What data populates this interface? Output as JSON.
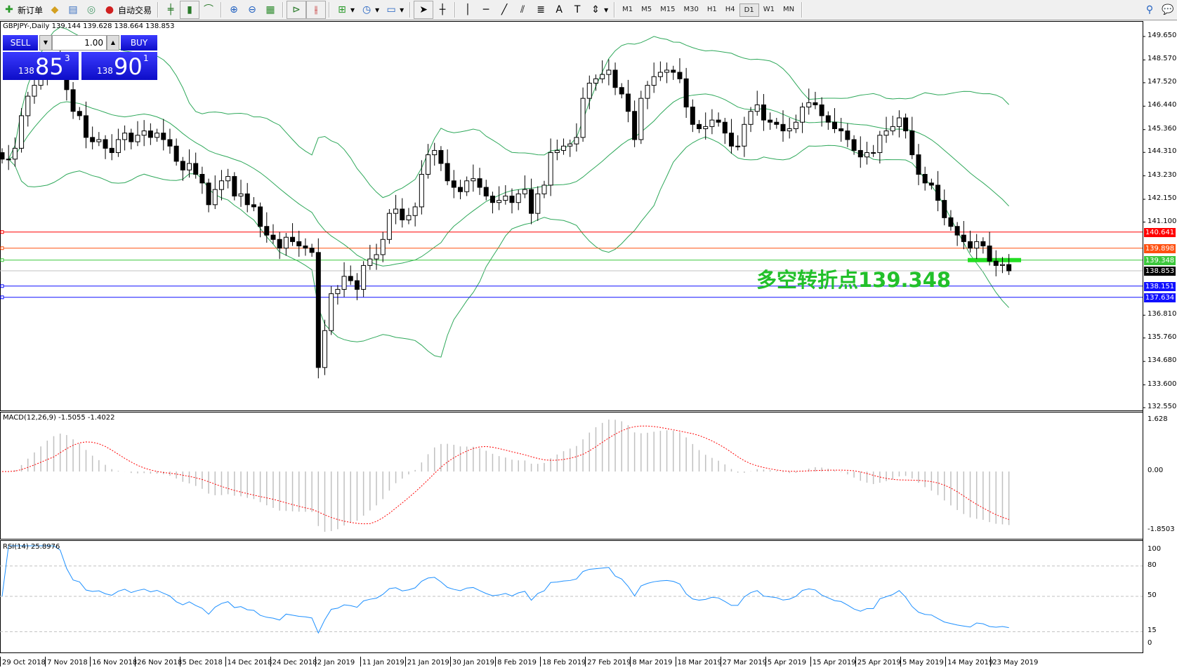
{
  "toolbar": {
    "new_order": "新订单",
    "auto_trading": "自动交易",
    "timeframes": [
      "M1",
      "M5",
      "M15",
      "M30",
      "H1",
      "H4",
      "D1",
      "W1",
      "MN"
    ],
    "active_timeframe": "D1"
  },
  "chart": {
    "header": "GBPJPY-,Daily  139.144 139.628 138.664 138.853",
    "symbol": "GBPJPY-",
    "period": "Daily",
    "ohlc_last": {
      "open": 139.144,
      "high": 139.628,
      "low": 138.664,
      "close": 138.853
    },
    "one_click": {
      "sell_label": "SELL",
      "buy_label": "BUY",
      "lot": "1.00",
      "sell_big": "138",
      "sell_main": "85",
      "sell_sup": "3",
      "buy_big": "138",
      "buy_main": "90",
      "buy_sup": "1"
    },
    "annotation": "多空转折点139.348",
    "price_ticks": [
      "149.650",
      "148.570",
      "147.520",
      "146.440",
      "145.360",
      "144.310",
      "143.230",
      "142.150",
      "141.100",
      "136.810",
      "135.760",
      "134.680",
      "133.600",
      "132.550"
    ],
    "levels": [
      {
        "price": 140.641,
        "label": "140.641",
        "color": "#ff0000"
      },
      {
        "price": 139.898,
        "label": "139.898",
        "color": "#ff5010"
      },
      {
        "price": 139.348,
        "label": "139.348",
        "color": "#3cc83c"
      },
      {
        "price": 138.853,
        "label": "138.853",
        "color": "#000000",
        "line": "#c0c0c0"
      },
      {
        "price": 138.151,
        "label": "138.151",
        "color": "#1010ff"
      },
      {
        "price": 137.634,
        "label": "137.634",
        "color": "#1010ff"
      }
    ],
    "closes": [
      144.0,
      144.0,
      144.5,
      146.0,
      146.9,
      147.4,
      147.9,
      148.4,
      148.5,
      148.3,
      147.2,
      146.2,
      146.0,
      145.0,
      144.8,
      144.9,
      144.5,
      144.3,
      144.9,
      145.2,
      144.8,
      145.1,
      145.3,
      145.0,
      145.2,
      144.9,
      144.6,
      143.9,
      143.5,
      143.8,
      143.3,
      142.9,
      141.9,
      142.6,
      143.0,
      143.2,
      142.3,
      142.4,
      141.9,
      141.8,
      140.9,
      140.5,
      140.3,
      139.9,
      140.4,
      140.2,
      140.0,
      139.9,
      139.7,
      134.4,
      136.1,
      137.8,
      138.0,
      138.6,
      138.4,
      138.0,
      139.1,
      139.4,
      139.6,
      140.3,
      141.5,
      141.7,
      141.2,
      141.4,
      141.8,
      143.3,
      144.2,
      144.4,
      143.8,
      143.0,
      142.7,
      142.5,
      143.0,
      143.1,
      142.7,
      142.3,
      142.0,
      142.1,
      142.3,
      142.0,
      142.4,
      142.6,
      141.5,
      142.4,
      142.8,
      144.3,
      144.4,
      144.6,
      144.7,
      145.0,
      146.8,
      147.5,
      147.7,
      147.9,
      148.1,
      147.3,
      147.0,
      146.2,
      144.9,
      146.8,
      147.4,
      147.8,
      148.0,
      148.1,
      148.0,
      147.7,
      146.4,
      145.6,
      145.4,
      145.5,
      145.8,
      145.7,
      145.2,
      144.6,
      144.6,
      145.6,
      146.2,
      146.5,
      145.8,
      145.7,
      145.6,
      145.3,
      145.4,
      145.7,
      146.4,
      146.6,
      146.5,
      146.0,
      145.7,
      145.4,
      145.3,
      144.9,
      144.4,
      144.1,
      144.3,
      144.3,
      145.1,
      145.3,
      145.5,
      145.9,
      145.3,
      144.2,
      143.3,
      142.9,
      142.8,
      142.1,
      141.3,
      140.9,
      140.5,
      140.2,
      139.9,
      140.2,
      140.0,
      139.3,
      139.1,
      139.144,
      138.853
    ],
    "bull_color": "#ffffff",
    "bear_color": "#000000",
    "band_color": "#2ea85a"
  },
  "macd": {
    "label": "MACD(12,26,9) -1.5055 -1.4022",
    "axis": [
      "1.628",
      "0.00",
      "-1.8503"
    ],
    "range": [
      -1.8503,
      1.628
    ],
    "hist_color": "#c0c0c0",
    "signal_color": "#ff0000"
  },
  "rsi": {
    "label": "RSI(14) 25.8976",
    "axis": [
      "100",
      "80",
      "50",
      "15",
      "0"
    ],
    "levels": [
      80,
      50,
      15
    ],
    "line_color": "#1e90ff"
  },
  "dates": [
    "29 Oct 2018",
    "7 Nov 2018",
    "16 Nov 2018",
    "26 Nov 2018",
    "5 Dec 2018",
    "14 Dec 2018",
    "24 Dec 2018",
    "2 Jan 2019",
    "11 Jan 2019",
    "21 Jan 2019",
    "30 Jan 2019",
    "8 Feb 2019",
    "18 Feb 2019",
    "27 Feb 2019",
    "8 Mar 2019",
    "18 Mar 2019",
    "27 Mar 2019",
    "5 Apr 2019",
    "15 Apr 2019",
    "25 Apr 2019",
    "5 May 2019",
    "14 May 2019",
    "23 May 2019"
  ]
}
